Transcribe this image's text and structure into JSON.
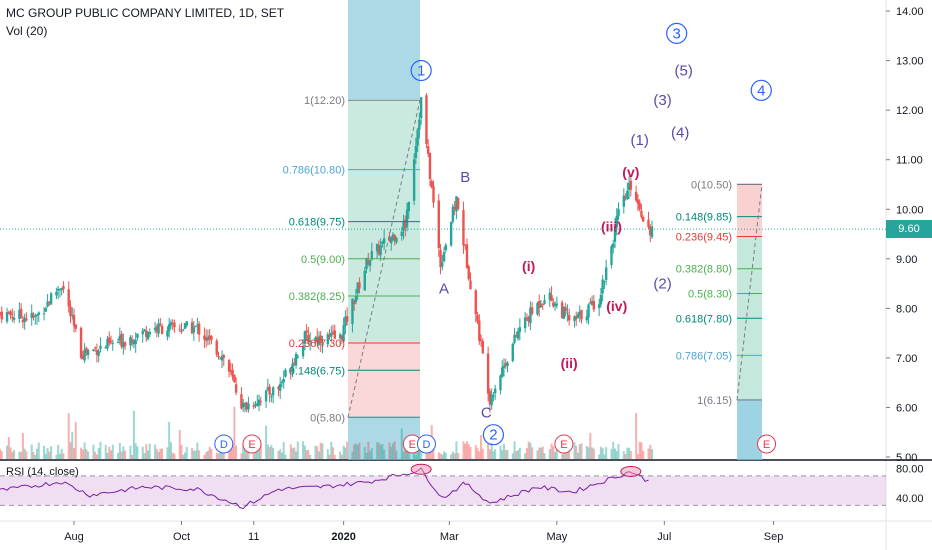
{
  "header": {
    "title": "MC GROUP PUBLIC COMPANY LIMITED, 1D, SET",
    "vol": "Vol (20)",
    "rsi": "RSI (14, close)"
  },
  "colors": {
    "up": "#26a69a",
    "down": "#ef5350",
    "price_line": "#26a69a",
    "wave_major": "#2962ff",
    "wave_minor": "#5b4ba8",
    "wave_sub": "#c2185b",
    "rsi_line": "#7b1fa2",
    "rsi_band": "#e1bee7"
  },
  "price_axis": {
    "ticks": [
      "14.00",
      "13.00",
      "12.00",
      "11.00",
      "10.00",
      "9.00",
      "8.00",
      "7.00",
      "6.00",
      "5.00"
    ],
    "current": "9.60"
  },
  "rsi_axis": {
    "ticks": [
      "80.00",
      "40.00"
    ]
  },
  "time_axis": {
    "ticks": [
      "Aug",
      "Oct",
      "11",
      "2020",
      "Mar",
      "May",
      "Jul",
      "Sep"
    ]
  },
  "chart_data": {
    "type": "candlestick",
    "x_type": "date",
    "ylim": [
      5.0,
      14.0
    ],
    "current_price": 9.6,
    "candles_approx_close": [
      {
        "date": "2019-06-20",
        "close": 7.9
      },
      {
        "date": "2019-07-10",
        "close": 7.8
      },
      {
        "date": "2019-07-25",
        "close": 8.5
      },
      {
        "date": "2019-08-05",
        "close": 7.1
      },
      {
        "date": "2019-08-25",
        "close": 7.3
      },
      {
        "date": "2019-09-15",
        "close": 7.6
      },
      {
        "date": "2019-10-10",
        "close": 7.6
      },
      {
        "date": "2019-10-25",
        "close": 7.0
      },
      {
        "date": "2019-11-05",
        "close": 6.0
      },
      {
        "date": "2019-11-25",
        "close": 6.4
      },
      {
        "date": "2019-12-10",
        "close": 7.4
      },
      {
        "date": "2019-12-30",
        "close": 7.4
      },
      {
        "date": "2020-01-15",
        "close": 9.0
      },
      {
        "date": "2020-02-05",
        "close": 9.7
      },
      {
        "date": "2020-02-14",
        "close": 12.2
      },
      {
        "date": "2020-02-25",
        "close": 8.9
      },
      {
        "date": "2020-03-05",
        "close": 10.2
      },
      {
        "date": "2020-03-24",
        "close": 6.2
      },
      {
        "date": "2020-04-10",
        "close": 7.6
      },
      {
        "date": "2020-04-25",
        "close": 8.3
      },
      {
        "date": "2020-05-10",
        "close": 7.7
      },
      {
        "date": "2020-05-25",
        "close": 8.2
      },
      {
        "date": "2020-06-05",
        "close": 9.9
      },
      {
        "date": "2020-06-12",
        "close": 10.5
      },
      {
        "date": "2020-06-22",
        "close": 9.6
      }
    ],
    "fib_retracement_1": {
      "levels": [
        {
          "label": "1(12.20)",
          "value": 12.2
        },
        {
          "label": "0.786(10.80)",
          "value": 10.8
        },
        {
          "label": "0.618(9.75)",
          "value": 9.75
        },
        {
          "label": "0.5(9.00)",
          "value": 9.0
        },
        {
          "label": "0.382(8.25)",
          "value": 8.25
        },
        {
          "label": "0.236(7.30)",
          "value": 7.3
        },
        {
          "label": "0.148(6.75)",
          "value": 6.75
        },
        {
          "label": "0(5.80)",
          "value": 5.8
        }
      ]
    },
    "fib_retracement_2": {
      "levels": [
        {
          "label": "0(10.50)",
          "value": 10.5
        },
        {
          "label": "0.148(9.85)",
          "value": 9.85
        },
        {
          "label": "0.236(9.45)",
          "value": 9.45
        },
        {
          "label": "0.382(8.80)",
          "value": 8.8
        },
        {
          "label": "0.5(8.30)",
          "value": 8.3
        },
        {
          "label": "0.618(7.80)",
          "value": 7.8
        },
        {
          "label": "0.786(7.05)",
          "value": 7.05
        },
        {
          "label": "1(6.15)",
          "value": 6.15
        }
      ]
    },
    "wave_labels": [
      {
        "text": "1",
        "circled": true,
        "tier": "major",
        "date": "2020-02-14",
        "price": 12.8
      },
      {
        "text": "2",
        "circled": true,
        "tier": "major",
        "date": "2020-03-26",
        "price": 5.45
      },
      {
        "text": "3",
        "circled": true,
        "tier": "major",
        "date": "2020-07-08",
        "price": 13.55
      },
      {
        "text": "4",
        "circled": true,
        "tier": "major",
        "date": "2020-08-25",
        "price": 12.4
      },
      {
        "text": "A",
        "circled": false,
        "tier": "minor",
        "date": "2020-02-27",
        "price": 8.4
      },
      {
        "text": "B",
        "circled": false,
        "tier": "minor",
        "date": "2020-03-10",
        "price": 10.65
      },
      {
        "text": "C",
        "circled": false,
        "tier": "minor",
        "date": "2020-03-22",
        "price": 5.9
      },
      {
        "text": "(1)",
        "circled": false,
        "tier": "minor",
        "date": "2020-06-17",
        "price": 11.4
      },
      {
        "text": "(2)",
        "circled": false,
        "tier": "minor",
        "date": "2020-06-30",
        "price": 8.5
      },
      {
        "text": "(3)",
        "circled": false,
        "tier": "minor",
        "date": "2020-06-30",
        "price": 12.2
      },
      {
        "text": "(4)",
        "circled": false,
        "tier": "minor",
        "date": "2020-07-10",
        "price": 11.55
      },
      {
        "text": "(5)",
        "circled": false,
        "tier": "minor",
        "date": "2020-07-12",
        "price": 12.8
      },
      {
        "text": "(i)",
        "circled": false,
        "tier": "sub",
        "date": "2020-04-15",
        "price": 8.85
      },
      {
        "text": "(ii)",
        "circled": false,
        "tier": "sub",
        "date": "2020-05-08",
        "price": 6.9
      },
      {
        "text": "(iii)",
        "circled": false,
        "tier": "sub",
        "date": "2020-06-01",
        "price": 9.65
      },
      {
        "text": "(iv)",
        "circled": false,
        "tier": "sub",
        "date": "2020-06-04",
        "price": 8.05
      },
      {
        "text": "(v)",
        "circled": false,
        "tier": "sub",
        "date": "2020-06-12",
        "price": 10.75
      }
    ],
    "event_markers": [
      {
        "text": "D",
        "date": "2019-10-25"
      },
      {
        "text": "E",
        "date": "2019-11-10"
      },
      {
        "text": "E",
        "date": "2020-02-09"
      },
      {
        "text": "D",
        "date": "2020-02-17"
      },
      {
        "text": "E",
        "date": "2020-05-05"
      },
      {
        "text": "E",
        "date": "2020-08-28"
      }
    ],
    "rsi": {
      "ylim": [
        20,
        90
      ],
      "bands": [
        70,
        30
      ],
      "approx_values": [
        {
          "date": "2019-06-20",
          "v": 50
        },
        {
          "date": "2019-07-25",
          "v": 62
        },
        {
          "date": "2019-08-10",
          "v": 44
        },
        {
          "date": "2019-09-10",
          "v": 55
        },
        {
          "date": "2019-10-10",
          "v": 52
        },
        {
          "date": "2019-11-05",
          "v": 28
        },
        {
          "date": "2019-11-25",
          "v": 52
        },
        {
          "date": "2019-12-20",
          "v": 55
        },
        {
          "date": "2020-01-15",
          "v": 62
        },
        {
          "date": "2020-02-14",
          "v": 78
        },
        {
          "date": "2020-02-26",
          "v": 40
        },
        {
          "date": "2020-03-10",
          "v": 60
        },
        {
          "date": "2020-03-24",
          "v": 33
        },
        {
          "date": "2020-04-20",
          "v": 55
        },
        {
          "date": "2020-05-10",
          "v": 48
        },
        {
          "date": "2020-06-12",
          "v": 76
        },
        {
          "date": "2020-06-24",
          "v": 60
        }
      ]
    }
  }
}
